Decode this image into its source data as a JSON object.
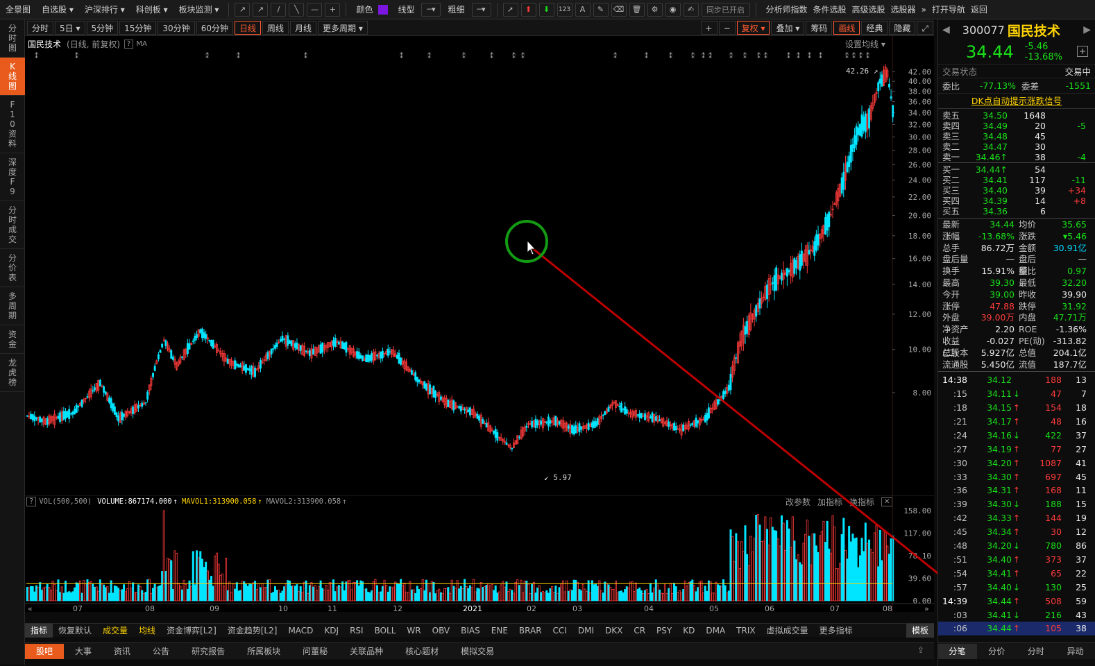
{
  "topbar": {
    "menus": [
      "全景图",
      "自选股",
      "沪深排行",
      "科创板",
      "板块监测"
    ],
    "tools": [
      "↗",
      "↗",
      "/",
      "╲",
      "—",
      "+"
    ],
    "color_label": "颜色",
    "line_type_label": "线型",
    "thickness_label": "粗细",
    "sync_label": "同步已开启",
    "right_menus": [
      "分析师指数",
      "条件选股",
      "高级选股",
      "选股器"
    ],
    "nav_label": "打开导航",
    "back_label": "返回"
  },
  "leftnav": [
    {
      "label": "分时图",
      "active": false
    },
    {
      "label": "K线图",
      "active": true
    },
    {
      "label": "F10资料",
      "active": false
    },
    {
      "label": "深度F9",
      "active": false
    },
    {
      "label": "分时成交",
      "active": false
    },
    {
      "label": "分价表",
      "active": false
    },
    {
      "label": "多周期",
      "active": false
    },
    {
      "label": "资金",
      "active": false
    },
    {
      "label": "龙虎榜",
      "active": false
    }
  ],
  "periods": [
    {
      "label": "分时"
    },
    {
      "label": "5日 ▾"
    },
    {
      "label": "5分钟"
    },
    {
      "label": "15分钟"
    },
    {
      "label": "30分钟"
    },
    {
      "label": "60分钟"
    },
    {
      "label": "日线",
      "active": true
    },
    {
      "label": "周线"
    },
    {
      "label": "月线"
    },
    {
      "label": "更多周期 ▾"
    }
  ],
  "period_right": [
    "复权 ▾",
    "叠加 ▾",
    "筹码",
    "画线",
    "经典",
    "隐藏"
  ],
  "chart_header": {
    "name": "国民技术",
    "sub": "(日线, 前复权)",
    "ma": "MA",
    "set_ma": "设置均线 ▾"
  },
  "price_labels": {
    "high": "42.26",
    "low": "5.97"
  },
  "vol_header": {
    "vol": "VOL(500,500)",
    "volume": "VOLUME:867174.000",
    "mavol1": "MAVOL1:313900.058",
    "mavol2": "MAVOL2:313900.058",
    "btns": [
      "改参数",
      "加指标",
      "换指标"
    ]
  },
  "colors": {
    "up": "#ff3b3b",
    "down": "#00e5ff",
    "accent": "#e85b1c"
  },
  "chart_data": {
    "type": "candlestick",
    "ylim": [
      5,
      43
    ],
    "y_ticks": [
      "42.00",
      "40.00",
      "38.00",
      "36.00",
      "34.00",
      "32.00",
      "30.00",
      "28.00",
      "26.00",
      "24.00",
      "22.00",
      "20.00",
      "18.00",
      "16.00",
      "14.00",
      "12.00",
      "10.00",
      "8.00"
    ],
    "vol_ticks": [
      "158.00",
      "117.00",
      "78.10",
      "39.60",
      "0.00"
    ],
    "x_ticks": [
      "07",
      "08",
      "09",
      "10",
      "11",
      "12",
      "2021",
      "02",
      "03",
      "04",
      "05",
      "06",
      "07",
      "08"
    ],
    "close_anchors": [
      {
        "i": 0,
        "c": 7.1
      },
      {
        "i": 10,
        "c": 6.9
      },
      {
        "i": 25,
        "c": 7.2
      },
      {
        "i": 40,
        "c": 8.4
      },
      {
        "i": 50,
        "c": 7.0
      },
      {
        "i": 65,
        "c": 7.6
      },
      {
        "i": 75,
        "c": 10.5
      },
      {
        "i": 82,
        "c": 9.2
      },
      {
        "i": 95,
        "c": 11.0
      },
      {
        "i": 110,
        "c": 9.4
      },
      {
        "i": 125,
        "c": 8.9
      },
      {
        "i": 140,
        "c": 10.6
      },
      {
        "i": 155,
        "c": 9.8
      },
      {
        "i": 170,
        "c": 10.4
      },
      {
        "i": 185,
        "c": 9.5
      },
      {
        "i": 200,
        "c": 9.9
      },
      {
        "i": 215,
        "c": 8.5
      },
      {
        "i": 230,
        "c": 7.6
      },
      {
        "i": 245,
        "c": 7.2
      },
      {
        "i": 258,
        "c": 6.4
      },
      {
        "i": 266,
        "c": 6.0
      },
      {
        "i": 275,
        "c": 6.8
      },
      {
        "i": 290,
        "c": 6.9
      },
      {
        "i": 300,
        "c": 6.6
      },
      {
        "i": 312,
        "c": 6.8
      },
      {
        "i": 322,
        "c": 7.6
      },
      {
        "i": 330,
        "c": 7.2
      },
      {
        "i": 345,
        "c": 7.0
      },
      {
        "i": 358,
        "c": 6.6
      },
      {
        "i": 372,
        "c": 7.0
      },
      {
        "i": 385,
        "c": 8.2
      },
      {
        "i": 392,
        "c": 10.6
      },
      {
        "i": 400,
        "c": 12.2
      },
      {
        "i": 408,
        "c": 14.0
      },
      {
        "i": 420,
        "c": 15.2
      },
      {
        "i": 432,
        "c": 17.0
      },
      {
        "i": 440,
        "c": 19.5
      },
      {
        "i": 448,
        "c": 24.0
      },
      {
        "i": 456,
        "c": 31.0
      },
      {
        "i": 462,
        "c": 33.0
      },
      {
        "i": 468,
        "c": 40.0
      },
      {
        "i": 472,
        "c": 41.5
      },
      {
        "i": 475,
        "c": 34.44
      }
    ]
  },
  "rp": {
    "code": "300077",
    "name": "国民技术",
    "price": "34.44",
    "chg": "-5.46",
    "pct": "-13.68%",
    "state_label": "交易状态",
    "state_val": "交易中",
    "wb_label": "委比",
    "wb_val": "-77.13%",
    "wc_label": "委差",
    "wc_val": "-1551",
    "dk": "DK点自动提示涨跌信号",
    "sell": [
      {
        "l": "卖五",
        "p": "34.50",
        "v": "1648",
        "d": ""
      },
      {
        "l": "卖四",
        "p": "34.49",
        "v": "20",
        "d": "-5"
      },
      {
        "l": "卖三",
        "p": "34.48",
        "v": "45",
        "d": ""
      },
      {
        "l": "卖二",
        "p": "34.47",
        "v": "30",
        "d": ""
      },
      {
        "l": "卖一",
        "p": "34.46↑",
        "v": "38",
        "d": "-4"
      }
    ],
    "buy": [
      {
        "l": "买一",
        "p": "34.44↑",
        "v": "54",
        "d": ""
      },
      {
        "l": "买二",
        "p": "34.41",
        "v": "117",
        "d": "-11"
      },
      {
        "l": "买三",
        "p": "34.40",
        "v": "39",
        "d": "+34"
      },
      {
        "l": "买四",
        "p": "34.39",
        "v": "14",
        "d": "+8"
      },
      {
        "l": "买五",
        "p": "34.36",
        "v": "6",
        "d": ""
      }
    ],
    "stats": [
      {
        "k": "最新",
        "v": "34.44",
        "c": "grn",
        "k2": "均价",
        "v2": "35.65",
        "c2": "grn"
      },
      {
        "k": "涨幅",
        "v": "-13.68%",
        "c": "grn",
        "k2": "涨跌",
        "v2": "▾5.46",
        "c2": "grn"
      },
      {
        "k": "总手",
        "v": "86.72万",
        "c": "wh",
        "k2": "金额",
        "v2": "30.91亿",
        "c2": "cy"
      },
      {
        "k": "盘后量",
        "v": "—",
        "c": "wh",
        "k2": "盘后额",
        "v2": "—",
        "c2": "wh"
      },
      {
        "k": "换手",
        "v": "15.91%",
        "c": "wh",
        "k2": "量比",
        "v2": "0.97",
        "c2": "grn"
      },
      {
        "k": "最高",
        "v": "39.30",
        "c": "grn",
        "k2": "最低",
        "v2": "32.20",
        "c2": "grn"
      },
      {
        "k": "今开",
        "v": "39.00",
        "c": "grn",
        "k2": "昨收",
        "v2": "39.90",
        "c2": "wh"
      },
      {
        "k": "涨停",
        "v": "47.88",
        "c": "red",
        "k2": "跌停",
        "v2": "31.92",
        "c2": "grn"
      },
      {
        "k": "外盘",
        "v": "39.00万",
        "c": "red",
        "k2": "内盘",
        "v2": "47.71万",
        "c2": "grn"
      },
      {
        "k": "净资产",
        "v": "2.20",
        "c": "wh",
        "k2": "ROE",
        "v2": "-1.36%",
        "c2": "wh"
      },
      {
        "k": "收益(二)",
        "v": "-0.027",
        "c": "wh",
        "k2": "PE(动)",
        "v2": "-313.82",
        "c2": "wh"
      },
      {
        "k": "总股本",
        "v": "5.927亿",
        "c": "wh",
        "k2": "总值",
        "v2": "204.1亿",
        "c2": "wh"
      },
      {
        "k": "流通股",
        "v": "5.450亿",
        "c": "wh",
        "k2": "流值",
        "v2": "187.7亿",
        "c2": "wh"
      }
    ],
    "ticks": [
      {
        "t": "14:38",
        "p": "34.12",
        "a": "",
        "v": "188",
        "vc": "red",
        "n": "13"
      },
      {
        "t": ":15",
        "p": "34.11",
        "a": "↓",
        "v": "47",
        "vc": "red",
        "n": "7"
      },
      {
        "t": ":18",
        "p": "34.15",
        "a": "↑",
        "v": "154",
        "vc": "red",
        "n": "18"
      },
      {
        "t": ":21",
        "p": "34.17",
        "a": "↑",
        "v": "48",
        "vc": "red",
        "n": "16"
      },
      {
        "t": ":24",
        "p": "34.16",
        "a": "↓",
        "v": "422",
        "vc": "grn",
        "n": "37"
      },
      {
        "t": ":27",
        "p": "34.19",
        "a": "↑",
        "v": "77",
        "vc": "red",
        "n": "27"
      },
      {
        "t": ":30",
        "p": "34.20",
        "a": "↑",
        "v": "1087",
        "vc": "red",
        "n": "41"
      },
      {
        "t": ":33",
        "p": "34.30",
        "a": "↑",
        "v": "697",
        "vc": "red",
        "n": "45"
      },
      {
        "t": ":36",
        "p": "34.31",
        "a": "↑",
        "v": "168",
        "vc": "red",
        "n": "11"
      },
      {
        "t": ":39",
        "p": "34.30",
        "a": "↓",
        "v": "188",
        "vc": "grn",
        "n": "15"
      },
      {
        "t": ":42",
        "p": "34.33",
        "a": "↑",
        "v": "144",
        "vc": "red",
        "n": "19"
      },
      {
        "t": ":45",
        "p": "34.34",
        "a": "↑",
        "v": "30",
        "vc": "red",
        "n": "12"
      },
      {
        "t": ":48",
        "p": "34.20",
        "a": "↓",
        "v": "780",
        "vc": "grn",
        "n": "86"
      },
      {
        "t": ":51",
        "p": "34.40",
        "a": "↑",
        "v": "373",
        "vc": "red",
        "n": "37"
      },
      {
        "t": ":54",
        "p": "34.41",
        "a": "↑",
        "v": "65",
        "vc": "red",
        "n": "22"
      },
      {
        "t": ":57",
        "p": "34.40",
        "a": "↓",
        "v": "130",
        "vc": "grn",
        "n": "25"
      },
      {
        "t": "14:39",
        "p": "34.44",
        "a": "↑",
        "v": "508",
        "vc": "red",
        "n": "59"
      },
      {
        "t": ":03",
        "p": "34.41",
        "a": "↓",
        "v": "216",
        "vc": "grn",
        "n": "43"
      },
      {
        "t": ":06",
        "p": "34.44",
        "a": "↑",
        "v": "105",
        "vc": "red",
        "n": "38"
      }
    ],
    "tabs": [
      "分笔",
      "分价",
      "分时",
      "异动"
    ]
  },
  "indicators": [
    "指标",
    "恢复默认",
    "成交量",
    "均线",
    "资金博弈[L2]",
    "资金趋势[L2]",
    "MACD",
    "KDJ",
    "RSI",
    "BOLL",
    "WR",
    "OBV",
    "BIAS",
    "ENE",
    "BRAR",
    "CCI",
    "DMI",
    "DKX",
    "CR",
    "PSY",
    "KD",
    "DMA",
    "TRIX",
    "虚拟成交量",
    "更多指标",
    "模板"
  ],
  "bottom_tabs": [
    "股吧",
    "大事",
    "资讯",
    "公告",
    "研究报告",
    "所属板块",
    "问董秘",
    "关联品种",
    "核心题材",
    "模拟交易"
  ]
}
